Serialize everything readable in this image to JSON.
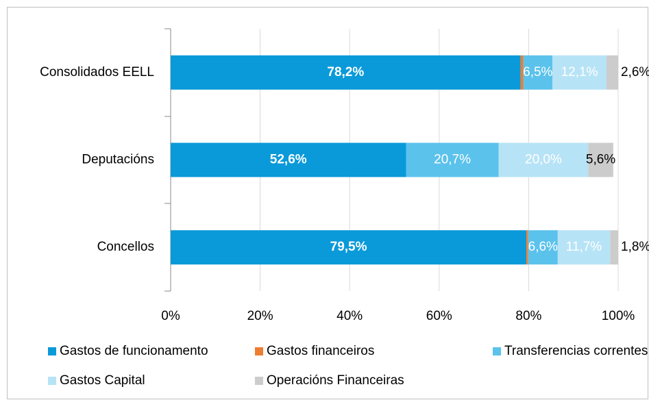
{
  "chart_data": {
    "type": "stacked_barh",
    "categories": [
      "Consolidados EELL",
      "Deputacións",
      "Concellos"
    ],
    "series": [
      {
        "name": "Gastos de funcionamento",
        "color": "#0a9ad9",
        "values": [
          78.2,
          52.6,
          79.5
        ],
        "value_labels": [
          "78,2%",
          "52,6%",
          "79,5%"
        ]
      },
      {
        "name": "Gastos financeiros",
        "color": "#ed7d31",
        "values": [
          0.6,
          0,
          0.4
        ]
      },
      {
        "name": "Transferencias correntes",
        "color": "#5bc2ec",
        "values": [
          6.5,
          20.7,
          6.6
        ],
        "value_labels": [
          "6,5%",
          "20,7%",
          "6,6%"
        ]
      },
      {
        "name": "Gastos Capital",
        "color": "#b7e3f6",
        "values": [
          12.1,
          20.0,
          11.7
        ],
        "value_labels": [
          "12,1%",
          "20,0%",
          "11,7%"
        ]
      },
      {
        "name": "Operacións Financeiras",
        "color": "#cccccc",
        "values": [
          2.6,
          5.6,
          1.8
        ],
        "value_labels": [
          "2,6%",
          "5,6%",
          "1,8%"
        ]
      }
    ],
    "xlim": [
      0,
      100
    ],
    "xticks": [
      {
        "value": 0,
        "label": "0%"
      },
      {
        "value": 20,
        "label": "20%"
      },
      {
        "value": 40,
        "label": "40%"
      },
      {
        "value": 60,
        "label": "60%"
      },
      {
        "value": 80,
        "label": "80%"
      },
      {
        "value": 100,
        "label": "100%"
      }
    ],
    "grid": true,
    "legend": "bottom"
  }
}
